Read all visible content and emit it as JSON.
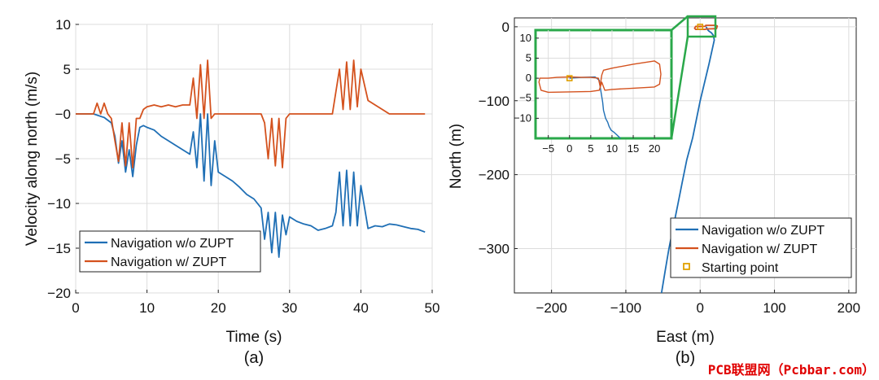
{
  "chart_data": [
    {
      "type": "line",
      "panel": "(a)",
      "xlabel": "Time (s)",
      "ylabel": "Velocity along north (m/s)",
      "xlim": [
        0,
        50
      ],
      "ylim": [
        -20,
        10
      ],
      "xticks": [
        0,
        10,
        20,
        30,
        40,
        50
      ],
      "yticks": [
        10,
        5,
        0,
        -5,
        -10,
        -15,
        -20
      ],
      "xtick_labels": [
        "0",
        "10",
        "20",
        "30",
        "40",
        "50"
      ],
      "ytick_labels": [
        "10",
        "5",
        "−0",
        "−5",
        "−10",
        "−15",
        "−20"
      ],
      "grid": true,
      "legend_position": "bottom-left",
      "series": [
        {
          "name": "Navigation w/o ZUPT",
          "color": "#1f6fb5",
          "x": [
            0,
            2.5,
            4,
            5,
            5.5,
            6,
            6.5,
            7,
            7.5,
            8,
            8.5,
            9,
            9.5,
            10,
            11,
            12,
            13,
            14,
            15,
            16,
            16.5,
            17,
            17.5,
            18,
            18.5,
            19,
            19.5,
            20,
            21,
            22,
            23,
            24,
            25,
            26,
            26.5,
            27,
            27.5,
            28,
            28.5,
            29,
            29.5,
            30,
            31,
            32,
            33,
            34,
            35,
            36,
            36.5,
            37,
            37.5,
            38,
            38.5,
            39,
            39.5,
            40,
            41,
            42,
            43,
            44,
            45,
            46,
            47,
            48,
            49
          ],
          "y": [
            0,
            0,
            -0.4,
            -1,
            -2.5,
            -5.5,
            -3,
            -6.5,
            -4,
            -7,
            -3.5,
            -1.5,
            -1.3,
            -1.5,
            -1.8,
            -2.5,
            -3,
            -3.5,
            -4,
            -4.5,
            -2,
            -6,
            0,
            -7.5,
            0,
            -8,
            -3,
            -6.5,
            -7,
            -7.5,
            -8.2,
            -9,
            -9.5,
            -10.5,
            -14,
            -11,
            -15.5,
            -11,
            -16,
            -11.3,
            -13.5,
            -11.5,
            -12,
            -12.3,
            -12.5,
            -13,
            -12.8,
            -12.5,
            -11,
            -6.5,
            -12.5,
            -6.3,
            -12.5,
            -6.5,
            -12.5,
            -8,
            -12.8,
            -12.5,
            -12.6,
            -12.3,
            -12.4,
            -12.6,
            -12.8,
            -12.9,
            -13.2
          ]
        },
        {
          "name": "Navigation w/ ZUPT",
          "color": "#d4521e",
          "x": [
            0,
            2.5,
            3,
            3.5,
            4,
            4.5,
            5,
            5.5,
            6,
            6.5,
            7,
            7.5,
            8,
            8.5,
            9,
            9.5,
            10,
            11,
            12,
            13,
            14,
            15,
            16,
            16.5,
            17,
            17.5,
            18,
            18.5,
            19,
            19.5,
            20,
            22,
            24,
            26,
            26.5,
            27,
            27.5,
            28,
            28.5,
            29,
            29.5,
            30,
            32,
            34,
            36,
            37,
            37.5,
            38,
            38.5,
            39,
            39.5,
            40,
            41,
            42,
            43,
            44,
            46,
            49
          ],
          "y": [
            0,
            0,
            1.2,
            0,
            1.2,
            0,
            -0.5,
            -3,
            -5.3,
            -1,
            -5.8,
            -1,
            -6,
            -0.5,
            -0.5,
            0.5,
            0.8,
            1,
            0.8,
            1,
            0.8,
            1,
            1,
            4,
            -0.5,
            5.5,
            -0.5,
            6,
            -0.5,
            0,
            0,
            0,
            0,
            0,
            -1,
            -5,
            -0.5,
            -5.8,
            -0.5,
            -6,
            -0.5,
            0,
            0,
            0,
            0,
            5,
            0.5,
            5.8,
            0.5,
            6,
            0.8,
            5,
            1.5,
            1,
            0.5,
            0,
            0,
            0
          ]
        }
      ]
    },
    {
      "type": "line",
      "panel": "(b)",
      "xlabel": "East (m)",
      "ylabel": "North (m)",
      "xlim": [
        -250,
        210
      ],
      "ylim": [
        -360,
        12
      ],
      "xticks": [
        -200,
        -100,
        0,
        100,
        200
      ],
      "yticks": [
        0,
        -100,
        -200,
        -300
      ],
      "xtick_labels": [
        "−200",
        "−100",
        "0",
        "100",
        "200"
      ],
      "ytick_labels": [
        "0",
        "−100",
        "−200",
        "−300"
      ],
      "grid": true,
      "legend_position": "bottom-right",
      "series": [
        {
          "name": "Navigation w/o ZUPT",
          "color": "#1f6fb5",
          "x": [
            8,
            9,
            10,
            12,
            15,
            18,
            19,
            12,
            0,
            -10,
            -18,
            -24,
            -30,
            -36,
            -42,
            -47,
            -52
          ],
          "y": [
            0,
            -2,
            -4,
            -6,
            -8,
            -12,
            -18,
            -50,
            -100,
            -150,
            -180,
            -210,
            -240,
            -270,
            -300,
            -330,
            -360
          ]
        },
        {
          "name": "Navigation w/ ZUPT",
          "color": "#d4521e",
          "x": [
            -5,
            7,
            7.5,
            21,
            23,
            22,
            8,
            7,
            -6,
            -7.5,
            -6,
            7
          ],
          "y": [
            0,
            0.5,
            2,
            2,
            1,
            -2.5,
            -3,
            -3.5,
            -3.5,
            -2,
            0.5,
            0.5
          ]
        },
        {
          "name": "Starting point",
          "color": "#e0a000",
          "x": [
            0
          ],
          "y": [
            0
          ]
        }
      ],
      "inset": {
        "xlim": [
          -8,
          24
        ],
        "ylim": [
          -15,
          12
        ],
        "xticks": [
          -5,
          0,
          5,
          10,
          15,
          20
        ],
        "yticks": [
          10,
          5,
          0,
          -5,
          -10
        ],
        "xtick_labels": [
          "−5",
          "0",
          "5",
          "10",
          "15",
          "20"
        ],
        "ytick_labels": [
          "10",
          "5",
          "0",
          "−5",
          "−10"
        ],
        "series": [
          {
            "name": "Navigation w/o ZUPT",
            "color": "#1f6fb5",
            "x": [
              0,
              3,
              6,
              7,
              7.2,
              7.5,
              7.8,
              8,
              8.5,
              9,
              9.3,
              9.8,
              10.5,
              11,
              12
            ],
            "y": [
              0,
              0.2,
              0.3,
              -0.5,
              -2,
              -4,
              -6,
              -8,
              -10,
              -11,
              -12,
              -13,
              -13.5,
              -14,
              -15
            ]
          },
          {
            "name": "Navigation w/ ZUPT",
            "color": "#d4521e",
            "x": [
              -5,
              -3,
              0,
              3,
              5,
              6.8,
              7.2,
              7.6,
              8,
              10,
              15,
              20,
              21.2,
              21.5,
              21.2,
              20,
              15,
              10,
              8.3,
              7.6,
              7,
              5,
              0,
              -5,
              -6.7,
              -7.2,
              -7,
              -5
            ],
            "y": [
              0,
              0.2,
              0.3,
              0.2,
              0.2,
              0,
              -2,
              0.8,
              2,
              2.5,
              3.5,
              4.3,
              3.5,
              1,
              -1.5,
              -2.2,
              -2.5,
              -2.8,
              -3,
              -1,
              -3,
              -3.3,
              -3.4,
              -3.5,
              -3,
              -1,
              0,
              0
            ]
          },
          {
            "name": "Starting point",
            "color": "#e0a000",
            "x": [
              0
            ],
            "y": [
              0
            ]
          }
        ]
      }
    }
  ],
  "watermark": "PCB联盟网（Pcbbar.com）"
}
